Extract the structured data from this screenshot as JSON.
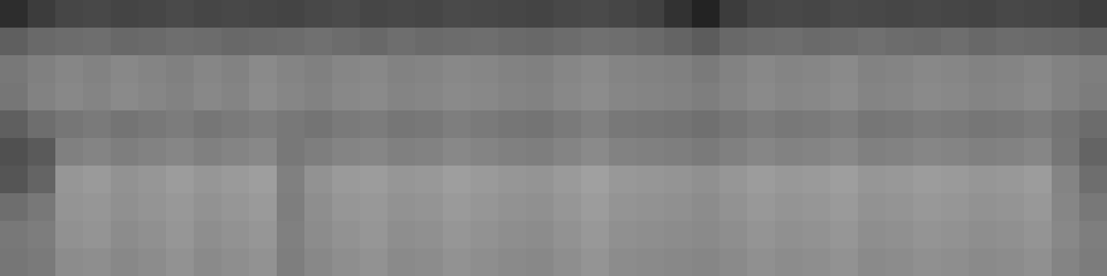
{
  "chart_data": {
    "type": "heatmap",
    "tick_labels": false,
    "value_range": [
      0,
      255
    ],
    "cells": [
      [
        45,
        60,
        70,
        72,
        68,
        70,
        74,
        70,
        72,
        70,
        68,
        72,
        75,
        70,
        72,
        70,
        74,
        72,
        70,
        68,
        72,
        74,
        70,
        65,
        50,
        35,
        60,
        70,
        72,
        70,
        74,
        72,
        70,
        72,
        70,
        68,
        72,
        70,
        68,
        62
      ],
      [
        95,
        105,
        108,
        110,
        104,
        106,
        110,
        108,
        104,
        106,
        108,
        112,
        108,
        104,
        110,
        106,
        108,
        110,
        106,
        104,
        108,
        112,
        110,
        106,
        100,
        92,
        104,
        108,
        110,
        106,
        108,
        112,
        108,
        106,
        110,
        104,
        108,
        106,
        104,
        100
      ],
      [
        120,
        128,
        134,
        130,
        136,
        132,
        128,
        134,
        130,
        138,
        132,
        128,
        134,
        136,
        130,
        132,
        136,
        134,
        130,
        128,
        134,
        138,
        132,
        130,
        128,
        122,
        130,
        136,
        132,
        134,
        138,
        130,
        132,
        136,
        134,
        130,
        132,
        136,
        130,
        126
      ],
      [
        118,
        130,
        136,
        132,
        138,
        134,
        130,
        136,
        132,
        140,
        134,
        130,
        136,
        138,
        132,
        134,
        138,
        136,
        132,
        130,
        136,
        140,
        134,
        132,
        130,
        126,
        132,
        138,
        134,
        136,
        140,
        132,
        134,
        138,
        136,
        132,
        134,
        138,
        130,
        124
      ],
      [
        95,
        110,
        118,
        122,
        116,
        120,
        124,
        118,
        122,
        126,
        120,
        116,
        122,
        124,
        118,
        120,
        126,
        122,
        118,
        116,
        122,
        128,
        120,
        118,
        116,
        112,
        118,
        124,
        120,
        122,
        126,
        118,
        120,
        124,
        122,
        118,
        120,
        124,
        116,
        108
      ],
      [
        80,
        90,
        128,
        132,
        126,
        130,
        134,
        128,
        132,
        136,
        120,
        126,
        132,
        134,
        128,
        130,
        136,
        132,
        128,
        126,
        132,
        138,
        130,
        128,
        126,
        122,
        128,
        134,
        130,
        132,
        136,
        128,
        130,
        134,
        132,
        128,
        130,
        134,
        118,
        100
      ],
      [
        85,
        100,
        150,
        154,
        146,
        150,
        156,
        150,
        154,
        158,
        128,
        146,
        154,
        156,
        150,
        152,
        158,
        154,
        150,
        148,
        154,
        160,
        152,
        150,
        148,
        144,
        150,
        156,
        152,
        154,
        158,
        150,
        152,
        156,
        154,
        150,
        152,
        156,
        132,
        110
      ],
      [
        110,
        120,
        148,
        150,
        144,
        148,
        152,
        146,
        150,
        154,
        126,
        142,
        150,
        152,
        146,
        148,
        154,
        150,
        146,
        144,
        150,
        156,
        148,
        146,
        144,
        140,
        146,
        152,
        148,
        150,
        154,
        146,
        148,
        152,
        150,
        146,
        148,
        152,
        134,
        120
      ],
      [
        120,
        125,
        145,
        148,
        140,
        144,
        150,
        142,
        146,
        150,
        128,
        140,
        146,
        150,
        142,
        144,
        150,
        146,
        142,
        140,
        146,
        152,
        144,
        142,
        140,
        138,
        142,
        148,
        144,
        146,
        150,
        142,
        144,
        148,
        146,
        142,
        144,
        148,
        136,
        126
      ],
      [
        118,
        122,
        140,
        142,
        136,
        140,
        146,
        138,
        142,
        146,
        126,
        136,
        142,
        146,
        138,
        140,
        146,
        142,
        138,
        136,
        142,
        148,
        140,
        138,
        136,
        134,
        138,
        144,
        140,
        142,
        146,
        138,
        140,
        144,
        142,
        138,
        140,
        144,
        132,
        124
      ]
    ]
  }
}
